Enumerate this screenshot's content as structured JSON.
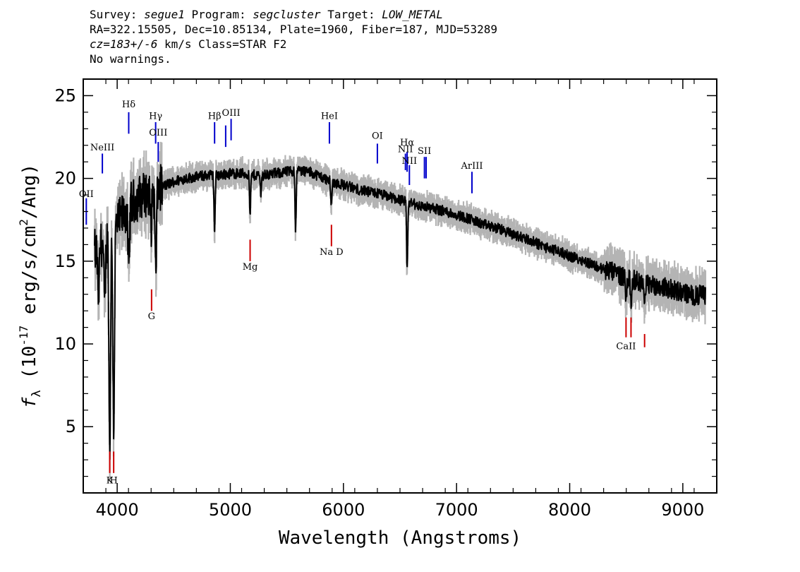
{
  "header": {
    "survey_label": "Survey:",
    "survey": "segue1",
    "program_label": "Program:",
    "program": "segcluster",
    "target_label": "Target:",
    "target": "LOW_METAL",
    "line2": "RA=322.15505, Dec=10.85134, Plate=1960, Fiber=187, MJD=53289",
    "cz_label": "cz=",
    "cz_value": "183+/-6",
    "cz_rest": " km/s Class=STAR F2",
    "line4": "No warnings."
  },
  "chart_data": {
    "type": "line",
    "xlabel": "Wavelength (Angstroms)",
    "ylabel_parts": [
      "f",
      "λ",
      " (10",
      "-17",
      " erg/s/cm",
      "2",
      "/Ang)"
    ],
    "xlim": [
      3700,
      9300
    ],
    "ylim": [
      1,
      26
    ],
    "xticks": [
      4000,
      5000,
      6000,
      7000,
      8000,
      9000
    ],
    "yticks": [
      5,
      10,
      15,
      20,
      25
    ],
    "colors": {
      "flux": "#000000",
      "error_band": "#b4b4b4",
      "emission": "#0000cc",
      "absorption": "#cc0000"
    },
    "continuum": [
      [
        3800,
        15.5
      ],
      [
        3900,
        16.4
      ],
      [
        4000,
        17.2
      ],
      [
        4100,
        18.3
      ],
      [
        4200,
        18.9
      ],
      [
        4300,
        19.2
      ],
      [
        4400,
        19.5
      ],
      [
        4500,
        19.8
      ],
      [
        4600,
        20.0
      ],
      [
        4700,
        20.1
      ],
      [
        4800,
        20.2
      ],
      [
        4900,
        20.2
      ],
      [
        5000,
        20.3
      ],
      [
        5100,
        20.3
      ],
      [
        5200,
        20.2
      ],
      [
        5300,
        20.2
      ],
      [
        5400,
        20.3
      ],
      [
        5500,
        20.4
      ],
      [
        5600,
        20.5
      ],
      [
        5700,
        20.4
      ],
      [
        5800,
        20.1
      ],
      [
        5900,
        19.8
      ],
      [
        6000,
        19.6
      ],
      [
        6100,
        19.4
      ],
      [
        6200,
        19.2
      ],
      [
        6300,
        19.1
      ],
      [
        6400,
        18.9
      ],
      [
        6500,
        18.7
      ],
      [
        6600,
        18.5
      ],
      [
        6700,
        18.3
      ],
      [
        6800,
        18.2
      ],
      [
        6900,
        18.0
      ],
      [
        7000,
        17.8
      ],
      [
        7100,
        17.6
      ],
      [
        7200,
        17.3
      ],
      [
        7300,
        17.1
      ],
      [
        7400,
        16.9
      ],
      [
        7500,
        16.6
      ],
      [
        7600,
        16.4
      ],
      [
        7700,
        16.1
      ],
      [
        7800,
        15.8
      ],
      [
        7900,
        15.6
      ],
      [
        8000,
        15.3
      ],
      [
        8100,
        15.1
      ],
      [
        8200,
        14.8
      ],
      [
        8300,
        14.5
      ],
      [
        8400,
        14.3
      ],
      [
        8500,
        14.0
      ],
      [
        8600,
        13.8
      ],
      [
        8700,
        13.6
      ],
      [
        8800,
        13.5
      ],
      [
        8900,
        13.3
      ],
      [
        9000,
        13.1
      ],
      [
        9100,
        12.9
      ],
      [
        9200,
        13.0
      ]
    ],
    "absorption_features": [
      [
        3835,
        3.0
      ],
      [
        3889,
        4.0
      ],
      [
        3934,
        13.0
      ],
      [
        3969,
        12.0
      ],
      [
        4102,
        4.0
      ],
      [
        4300,
        2.0
      ],
      [
        4341,
        5.0
      ],
      [
        4861,
        3.5
      ],
      [
        5175,
        2.5
      ],
      [
        5270,
        1.0
      ],
      [
        5577,
        3.5
      ],
      [
        5893,
        1.5
      ],
      [
        6563,
        4.2
      ],
      [
        8498,
        1.2
      ],
      [
        8542,
        1.5
      ],
      [
        8662,
        1.5
      ]
    ],
    "lines": [
      {
        "label": "OII",
        "x": 3727,
        "type": "emission",
        "y_from": 17.2,
        "y_to": 18.8,
        "label_y": 18.8
      },
      {
        "label": "NeIII",
        "x": 3869,
        "type": "emission",
        "y_from": 20.3,
        "y_to": 21.5,
        "label_y": 21.6
      },
      {
        "label": "Hδ",
        "x": 4102,
        "type": "emission",
        "y_from": 22.7,
        "y_to": 24.0,
        "label_y": 24.2
      },
      {
        "label": "Hγ",
        "x": 4340,
        "type": "emission",
        "y_from": 22.1,
        "y_to": 23.4,
        "label_y": 23.5
      },
      {
        "label": "OIII",
        "x": 4363,
        "type": "emission",
        "y_from": 21.0,
        "y_to": 22.2,
        "label_y": 22.5
      },
      {
        "label": "Hβ",
        "x": 4861,
        "type": "emission",
        "y_from": 22.1,
        "y_to": 23.4,
        "label_y": 23.5
      },
      {
        "label": "",
        "x": 4959,
        "type": "emission",
        "y_from": 21.9,
        "y_to": 23.2,
        "label_y": 23.2
      },
      {
        "label": "OIII",
        "x": 5007,
        "type": "emission",
        "y_from": 22.3,
        "y_to": 23.6,
        "label_y": 23.7
      },
      {
        "label": "HeI",
        "x": 5876,
        "type": "emission",
        "y_from": 22.1,
        "y_to": 23.4,
        "label_y": 23.5
      },
      {
        "label": "OI",
        "x": 6300,
        "type": "emission",
        "y_from": 20.9,
        "y_to": 22.1,
        "label_y": 22.3
      },
      {
        "label": "NII",
        "x": 6548,
        "type": "emission",
        "y_from": 20.5,
        "y_to": 21.5,
        "label_y": 21.5
      },
      {
        "label": "Hα",
        "x": 6563,
        "type": "emission",
        "y_from": 20.4,
        "y_to": 21.6,
        "label_y": 21.9
      },
      {
        "label": "NII",
        "x": 6583,
        "type": "emission",
        "y_from": 19.6,
        "y_to": 20.8,
        "label_y": 20.8
      },
      {
        "label": "SII",
        "x": 6716,
        "type": "emission",
        "y_from": 20.0,
        "y_to": 21.3,
        "label_y": 21.4
      },
      {
        "label": "",
        "x": 6731,
        "type": "emission",
        "y_from": 20.0,
        "y_to": 21.3,
        "label_y": 21.3
      },
      {
        "label": "ArIII",
        "x": 7136,
        "type": "emission",
        "y_from": 19.1,
        "y_to": 20.4,
        "label_y": 20.5
      },
      {
        "label": "K",
        "x": 3934,
        "type": "absorption",
        "y_from": 2.2,
        "y_to": 3.5,
        "label_y": 1.5
      },
      {
        "label": "H",
        "x": 3969,
        "type": "absorption",
        "y_from": 2.2,
        "y_to": 3.5,
        "label_y": 1.5
      },
      {
        "label": "G",
        "x": 4304,
        "type": "absorption",
        "y_from": 12.0,
        "y_to": 13.3,
        "label_y": 11.4
      },
      {
        "label": "Mg",
        "x": 5175,
        "type": "absorption",
        "y_from": 15.0,
        "y_to": 16.3,
        "label_y": 14.4
      },
      {
        "label": "Na D",
        "x": 5894,
        "type": "absorption",
        "y_from": 15.9,
        "y_to": 17.2,
        "label_y": 15.3
      },
      {
        "label": "CaII",
        "x": 8498,
        "type": "absorption",
        "y_from": 10.4,
        "y_to": 11.6,
        "label_y": 9.6
      },
      {
        "label": "",
        "x": 8542,
        "type": "absorption",
        "y_from": 10.4,
        "y_to": 11.6,
        "label_y": 9.6
      },
      {
        "label": "",
        "x": 8662,
        "type": "absorption",
        "y_from": 9.8,
        "y_to": 10.6,
        "label_y": 9.6
      }
    ]
  }
}
